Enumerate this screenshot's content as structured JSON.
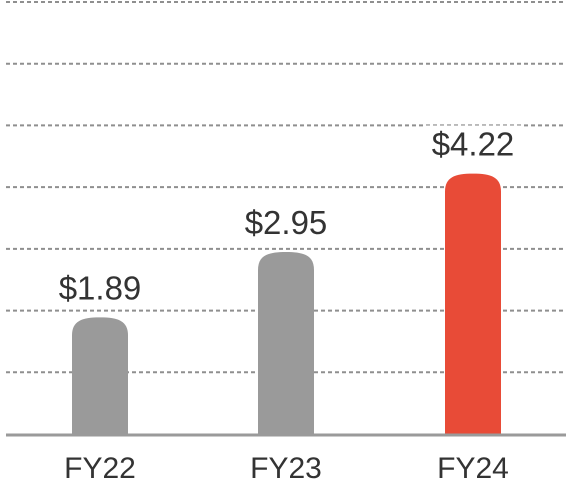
{
  "chart_data": {
    "type": "bar",
    "title": "",
    "xlabel": "",
    "ylabel": "",
    "categories": [
      "FY22",
      "FY23",
      "FY24"
    ],
    "values": [
      1.89,
      2.95,
      4.22
    ],
    "value_labels": [
      "$1.89",
      "$2.95",
      "$4.22"
    ],
    "ylim": [
      0,
      7
    ],
    "grid": true,
    "grid_style": "dashed-horizontal",
    "legend": "none",
    "colors": {
      "bar": "#9a9a9a",
      "highlight_bar": "#e84b37",
      "grid": "#8f8f8f",
      "axis": "#9a9a9a",
      "text": "#333333"
    },
    "highlight_index": 2
  }
}
